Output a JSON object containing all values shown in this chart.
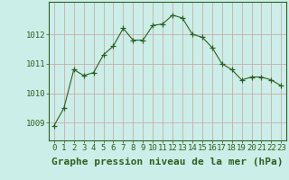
{
  "x": [
    0,
    1,
    2,
    3,
    4,
    5,
    6,
    7,
    8,
    9,
    10,
    11,
    12,
    13,
    14,
    15,
    16,
    17,
    18,
    19,
    20,
    21,
    22,
    23
  ],
  "y": [
    1008.9,
    1009.5,
    1010.8,
    1010.6,
    1010.7,
    1011.3,
    1011.6,
    1012.2,
    1011.8,
    1011.8,
    1012.3,
    1012.35,
    1012.65,
    1012.55,
    1012.0,
    1011.9,
    1011.55,
    1011.0,
    1010.8,
    1010.45,
    1010.55,
    1010.55,
    1010.45,
    1010.25
  ],
  "line_color": "#2d6020",
  "marker": "+",
  "marker_size": 4,
  "bg_color": "#cceee8",
  "grid_color": "#c8a0a0",
  "xlabel": "Graphe pression niveau de la mer (hPa)",
  "xlabel_fontsize": 8,
  "ylabel_ticks": [
    1009,
    1010,
    1011,
    1012
  ],
  "ylim": [
    1008.4,
    1013.1
  ],
  "xlim": [
    -0.5,
    23.5
  ],
  "xticks": [
    0,
    1,
    2,
    3,
    4,
    5,
    6,
    7,
    8,
    9,
    10,
    11,
    12,
    13,
    14,
    15,
    16,
    17,
    18,
    19,
    20,
    21,
    22,
    23
  ],
  "tick_fontsize": 6.5,
  "axis_label_color": "#2d6020",
  "spine_color": "#2d6020"
}
